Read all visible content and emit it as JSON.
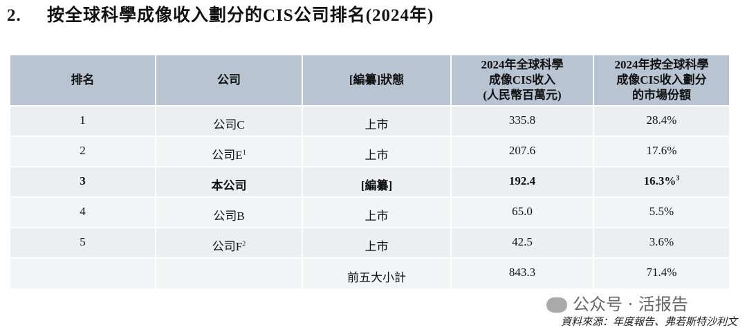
{
  "heading": {
    "number": "2.",
    "title": "按全球科學成像收入劃分的CIS公司排名(2024年)"
  },
  "table": {
    "columns": [
      [
        "排名"
      ],
      [
        "公司"
      ],
      [
        "[編纂]狀態"
      ],
      [
        "2024年全球科學",
        "成像CIS收入",
        "(人民幣百萬元)"
      ],
      [
        "2024年按全球科學",
        "成像CIS收入劃分",
        "的市場份額"
      ]
    ],
    "rows": [
      {
        "cells": [
          {
            "text": "1"
          },
          {
            "text": "公司C"
          },
          {
            "text": "上市"
          },
          {
            "text": "335.8"
          },
          {
            "text": "28.4%"
          }
        ]
      },
      {
        "cells": [
          {
            "text": "2"
          },
          {
            "text": "公司E",
            "sup": "1"
          },
          {
            "text": "上市"
          },
          {
            "text": "207.6"
          },
          {
            "text": "17.6%"
          }
        ]
      },
      {
        "cells": [
          {
            "text": "3"
          },
          {
            "text": "本公司"
          },
          {
            "text": "[編纂]"
          },
          {
            "text": "192.4"
          },
          {
            "text": "16.3%",
            "sup": "3"
          }
        ],
        "bold": true
      },
      {
        "cells": [
          {
            "text": "4"
          },
          {
            "text": "公司B"
          },
          {
            "text": "上市"
          },
          {
            "text": "65.0"
          },
          {
            "text": "5.5%"
          }
        ]
      },
      {
        "cells": [
          {
            "text": "5"
          },
          {
            "text": "公司F",
            "sup": "2"
          },
          {
            "text": "上市"
          },
          {
            "text": "42.5"
          },
          {
            "text": "3.6%"
          }
        ]
      },
      {
        "cells": [
          null,
          null,
          {
            "text": "前五大小計"
          },
          {
            "text": "843.3"
          },
          {
            "text": "71.4%"
          }
        ]
      }
    ]
  },
  "watermark": "公众号 · 活报告",
  "source": "資料來源：年度報告、弗若斯特沙利文"
}
